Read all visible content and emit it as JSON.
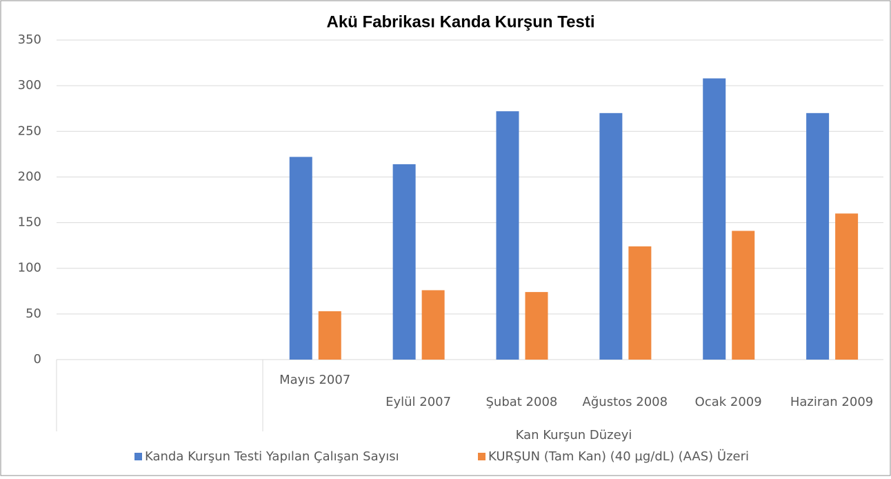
{
  "chart_data": {
    "type": "bar",
    "title": "Akü Fabrikası Kanda Kurşun Testi",
    "x_label": "Kan Kurşun Düzeyi",
    "categories": [
      null,
      null,
      "Mayıs 2007",
      "Eylül 2007",
      "Şubat 2008",
      "Ağustos 2008",
      "Ocak 2009",
      "Haziran 2009"
    ],
    "series": [
      {
        "name": "Kanda Kurşun Testi Yapılan Çalışan Sayısı",
        "color": "#4f7fcc",
        "values": [
          null,
          null,
          222,
          214,
          272,
          270,
          308,
          270
        ]
      },
      {
        "name": "KURŞUN (Tam Kan) (40 µg/dL) (AAS) Üzeri",
        "color": "#f0883e",
        "values": [
          null,
          null,
          53,
          76,
          74,
          124,
          141,
          160
        ]
      }
    ],
    "ylim": [
      0,
      350
    ],
    "yticks": [
      0,
      50,
      100,
      150,
      200,
      250,
      300,
      350
    ],
    "grid": true,
    "legend": "bottom"
  }
}
